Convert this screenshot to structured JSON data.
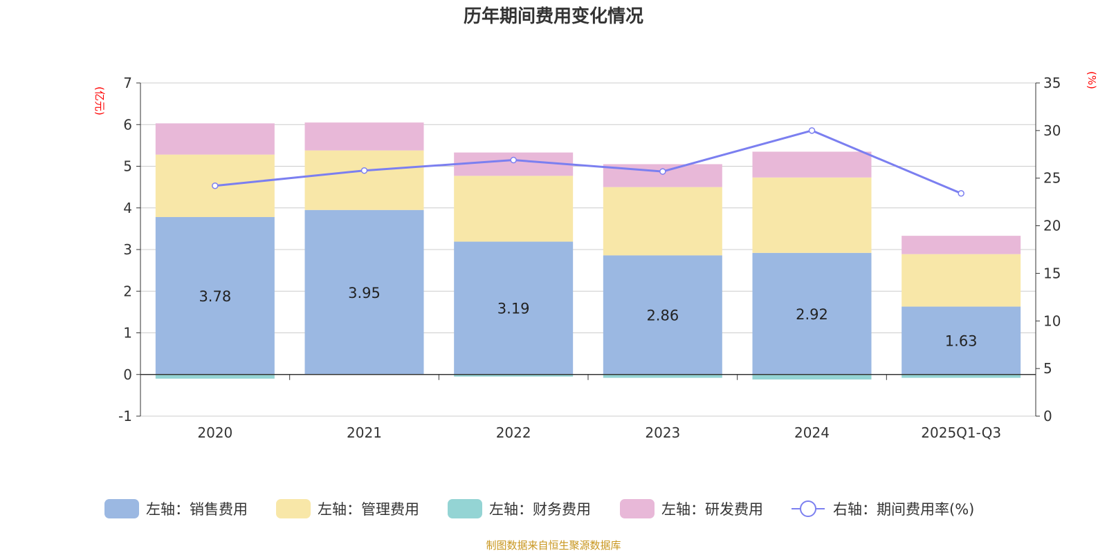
{
  "chart_data": {
    "type": "bar",
    "title": "历年期间费用变化情况",
    "categories": [
      "2020",
      "2021",
      "2022",
      "2023",
      "2024",
      "2025Q1-Q3"
    ],
    "left_axis": {
      "unit": "(亿元)",
      "ylim": [
        -1,
        7
      ],
      "ticks": [
        -1,
        0,
        1,
        2,
        3,
        4,
        5,
        6,
        7
      ]
    },
    "right_axis": {
      "unit": "(%)",
      "ylim": [
        0,
        35
      ],
      "ticks": [
        0,
        5,
        10,
        15,
        20,
        25,
        30,
        35
      ]
    },
    "series": [
      {
        "name": "左轴：销售费用",
        "type": "stacked-bar",
        "axis": "left",
        "color": "#9bb8e2",
        "values": [
          3.78,
          3.95,
          3.19,
          2.86,
          2.92,
          1.63
        ],
        "data_labels": [
          "3.78",
          "3.95",
          "3.19",
          "2.86",
          "2.92",
          "1.63"
        ]
      },
      {
        "name": "左轴：管理费用",
        "type": "stacked-bar",
        "axis": "left",
        "color": "#f8e7a8",
        "values": [
          1.5,
          1.43,
          1.58,
          1.64,
          1.81,
          1.26
        ]
      },
      {
        "name": "左轴：财务费用",
        "type": "stacked-bar",
        "axis": "left",
        "color": "#94d4d4",
        "values": [
          -0.1,
          0.0,
          -0.05,
          -0.08,
          -0.12,
          -0.08
        ]
      },
      {
        "name": "左轴：研发费用",
        "type": "stacked-bar",
        "axis": "left",
        "color": "#e8b8d8",
        "values": [
          0.75,
          0.67,
          0.56,
          0.55,
          0.62,
          0.44
        ]
      },
      {
        "name": "右轴：期间费用率(%)",
        "type": "line",
        "axis": "right",
        "color": "#7b7ff0",
        "values": [
          24.2,
          25.8,
          26.9,
          25.7,
          30.0,
          23.4
        ]
      }
    ],
    "source": "制图数据来自恒生聚源数据库"
  }
}
